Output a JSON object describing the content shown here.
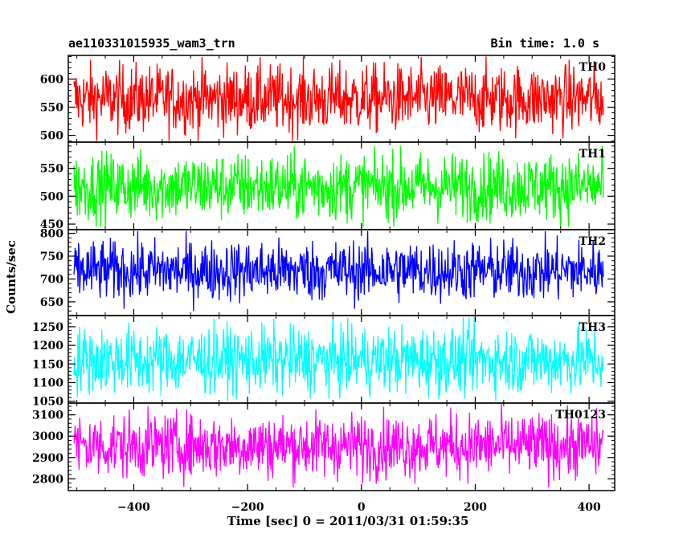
{
  "chart_data": {
    "type": "line",
    "title": "ae110331015935_wam3_trn",
    "subtitle": "Bin time: 1.0 s",
    "xlabel": "Time [sec] 0 = 2011/03/31 01:59:35",
    "ylabel": "Counts/sec",
    "xlim": [
      -515,
      445
    ],
    "x_ticks": [
      -400,
      -200,
      0,
      200,
      400
    ],
    "x_tick_labels": [
      "−400",
      "−200",
      "0",
      "200",
      "400"
    ],
    "x_range": [
      -505,
      425
    ],
    "bin_time": 1.0,
    "panels": [
      {
        "name": "TH0",
        "color": "#ff0000",
        "ylim": [
          488,
          642
        ],
        "yticks": [
          500,
          550,
          600
        ],
        "mean": 565,
        "spread": 30,
        "min": 490,
        "max": 640
      },
      {
        "name": "TH1",
        "color": "#00ff00",
        "ylim": [
          440,
          597
        ],
        "yticks": [
          450,
          500,
          550
        ],
        "mean": 517,
        "spread": 30,
        "min": 445,
        "max": 590
      },
      {
        "name": "TH2",
        "color": "#0000ff",
        "ylim": [
          620,
          808
        ],
        "yticks": [
          650,
          700,
          750,
          800
        ],
        "mean": 718,
        "spread": 33,
        "min": 630,
        "max": 805
      },
      {
        "name": "TH3",
        "color": "#00ffff",
        "ylim": [
          1045,
          1280
        ],
        "yticks": [
          1050,
          1100,
          1150,
          1200,
          1250
        ],
        "mean": 1160,
        "spread": 45,
        "min": 1050,
        "max": 1275
      },
      {
        "name": "TH0123",
        "color": "#ff00ff",
        "ylim": [
          2745,
          3155
        ],
        "yticks": [
          2800,
          2900,
          3000,
          3100
        ],
        "mean": 2955,
        "spread": 75,
        "min": 2760,
        "max": 3150
      }
    ]
  }
}
